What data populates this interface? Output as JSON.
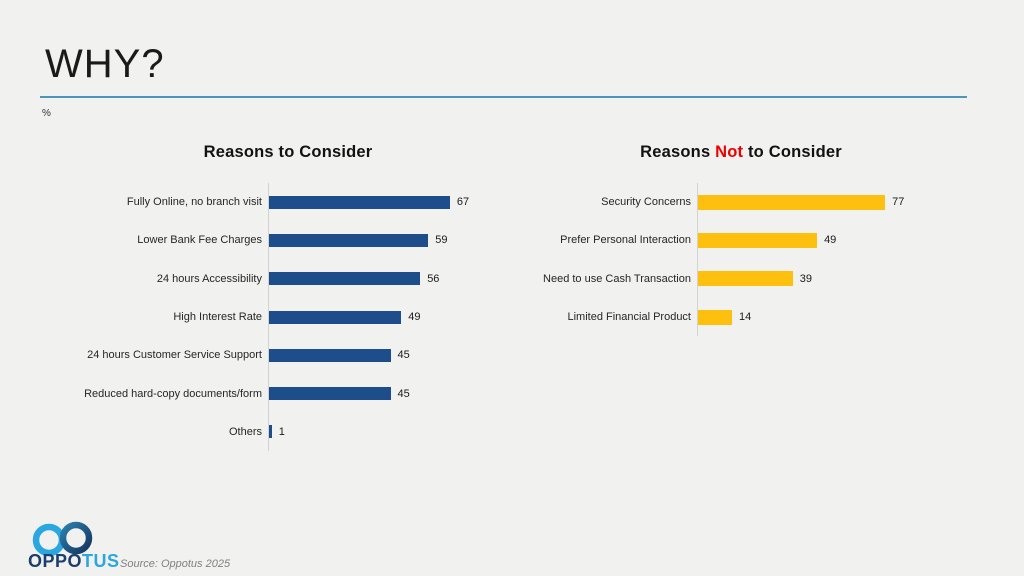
{
  "page": {
    "title": "WHY?",
    "unit_label": "%",
    "source": "Source: Oppotus 2025"
  },
  "logo": {
    "wordmark_primary": "OPPO",
    "wordmark_secondary": "TUS",
    "primary_color": "#1c3e6e",
    "secondary_color": "#2aa7e0"
  },
  "colors": {
    "background": "#f1f1f0",
    "divider": "#4e95ba",
    "blue_bar": "#1d4e8b",
    "yellow_bar": "#fdc00f",
    "not_red": "#ed0000",
    "axis_line": "#d2d2d2"
  },
  "chart_data": [
    {
      "type": "bar",
      "orientation": "horizontal",
      "title": "Reasons to Consider",
      "title_parts": [
        {
          "text": "Reasons to Consider",
          "color": "#121212"
        }
      ],
      "categories": [
        "Fully Online, no branch visit",
        "Lower Bank Fee Charges",
        "24 hours Accessibility",
        "High Interest Rate",
        "24 hours Customer Service Support",
        "Reduced hard-copy documents/form",
        "Others"
      ],
      "values": [
        67,
        59,
        56,
        49,
        45,
        45,
        1
      ],
      "bar_color": "#1d4e8b",
      "xlim": [
        0,
        100
      ],
      "value_labels": true,
      "legend": false,
      "grid": false
    },
    {
      "type": "bar",
      "orientation": "horizontal",
      "title": "Reasons Not to Consider",
      "title_parts": [
        {
          "text": "Reasons ",
          "color": "#121212"
        },
        {
          "text": "Not",
          "color": "#ed0000"
        },
        {
          "text": " to Consider",
          "color": "#121212"
        }
      ],
      "categories": [
        "Security Concerns",
        "Prefer Personal Interaction",
        "Need to use Cash Transaction",
        "Limited Financial Product"
      ],
      "values": [
        77,
        49,
        39,
        14
      ],
      "bar_color": "#fdc00f",
      "xlim": [
        0,
        100
      ],
      "value_labels": true,
      "legend": false,
      "grid": false
    }
  ]
}
